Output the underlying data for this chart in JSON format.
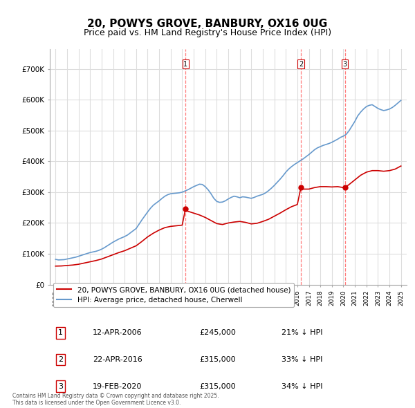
{
  "title": "20, POWYS GROVE, BANBURY, OX16 0UG",
  "subtitle": "Price paid vs. HM Land Registry's House Price Index (HPI)",
  "title_fontsize": 11,
  "subtitle_fontsize": 9,
  "background_color": "#ffffff",
  "plot_bg_color": "#ffffff",
  "grid_color": "#dddddd",
  "transactions": [
    {
      "num": 1,
      "date_label": "12-APR-2006",
      "date_x": 2006.28,
      "price": 245000,
      "hpi_pct": "21% ↓ HPI"
    },
    {
      "num": 2,
      "date_label": "22-APR-2016",
      "date_x": 2016.31,
      "price": 315000,
      "hpi_pct": "33% ↓ HPI"
    },
    {
      "num": 3,
      "date_label": "19-FEB-2020",
      "date_x": 2020.13,
      "price": 315000,
      "hpi_pct": "34% ↓ HPI"
    }
  ],
  "vline_color": "#ff4444",
  "vline_style": "--",
  "vline_alpha": 0.7,
  "red_line_color": "#cc0000",
  "blue_line_color": "#6699cc",
  "ylim_min": 0,
  "ylim_max": 750000,
  "yticks": [
    0,
    100000,
    200000,
    300000,
    400000,
    500000,
    600000,
    700000
  ],
  "ytick_labels": [
    "£0",
    "£100K",
    "£200K",
    "£300K",
    "£400K",
    "£500K",
    "£600K",
    "£700K"
  ],
  "xlim_min": 1994.5,
  "xlim_max": 2025.5,
  "legend_entries": [
    "20, POWYS GROVE, BANBURY, OX16 0UG (detached house)",
    "HPI: Average price, detached house, Cherwell"
  ],
  "footer_text": "Contains HM Land Registry data © Crown copyright and database right 2025.\nThis data is licensed under the Open Government Licence v3.0.",
  "hpi_data_x": [
    1995.0,
    1995.25,
    1995.5,
    1995.75,
    1996.0,
    1996.25,
    1996.5,
    1996.75,
    1997.0,
    1997.25,
    1997.5,
    1997.75,
    1998.0,
    1998.25,
    1998.5,
    1998.75,
    1999.0,
    1999.25,
    1999.5,
    1999.75,
    2000.0,
    2000.25,
    2000.5,
    2000.75,
    2001.0,
    2001.25,
    2001.5,
    2001.75,
    2002.0,
    2002.25,
    2002.5,
    2002.75,
    2003.0,
    2003.25,
    2003.5,
    2003.75,
    2004.0,
    2004.25,
    2004.5,
    2004.75,
    2005.0,
    2005.25,
    2005.5,
    2005.75,
    2006.0,
    2006.25,
    2006.5,
    2006.75,
    2007.0,
    2007.25,
    2007.5,
    2007.75,
    2008.0,
    2008.25,
    2008.5,
    2008.75,
    2009.0,
    2009.25,
    2009.5,
    2009.75,
    2010.0,
    2010.25,
    2010.5,
    2010.75,
    2011.0,
    2011.25,
    2011.5,
    2011.75,
    2012.0,
    2012.25,
    2012.5,
    2012.75,
    2013.0,
    2013.25,
    2013.5,
    2013.75,
    2014.0,
    2014.25,
    2014.5,
    2014.75,
    2015.0,
    2015.25,
    2015.5,
    2015.75,
    2016.0,
    2016.25,
    2016.5,
    2016.75,
    2017.0,
    2017.25,
    2017.5,
    2017.75,
    2018.0,
    2018.25,
    2018.5,
    2018.75,
    2019.0,
    2019.25,
    2019.5,
    2019.75,
    2020.0,
    2020.25,
    2020.5,
    2020.75,
    2021.0,
    2021.25,
    2021.5,
    2021.75,
    2022.0,
    2022.25,
    2022.5,
    2022.75,
    2023.0,
    2023.25,
    2023.5,
    2023.75,
    2024.0,
    2024.25,
    2024.5,
    2024.75,
    2025.0
  ],
  "hpi_data_y": [
    82000,
    80000,
    80500,
    81000,
    83000,
    85000,
    87000,
    89000,
    92000,
    95000,
    98000,
    101000,
    104000,
    106000,
    108000,
    111000,
    115000,
    120000,
    126000,
    132000,
    138000,
    143000,
    148000,
    152000,
    156000,
    161000,
    168000,
    175000,
    182000,
    196000,
    210000,
    223000,
    236000,
    248000,
    258000,
    265000,
    272000,
    280000,
    287000,
    292000,
    295000,
    296000,
    297000,
    298000,
    300000,
    304000,
    308000,
    313000,
    318000,
    322000,
    326000,
    325000,
    318000,
    308000,
    295000,
    280000,
    270000,
    267000,
    268000,
    272000,
    278000,
    283000,
    287000,
    285000,
    282000,
    285000,
    284000,
    282000,
    280000,
    283000,
    287000,
    290000,
    293000,
    298000,
    305000,
    313000,
    322000,
    332000,
    342000,
    353000,
    365000,
    375000,
    383000,
    390000,
    396000,
    402000,
    408000,
    415000,
    422000,
    430000,
    438000,
    444000,
    448000,
    452000,
    455000,
    458000,
    462000,
    467000,
    472000,
    478000,
    482000,
    488000,
    500000,
    515000,
    530000,
    548000,
    560000,
    570000,
    578000,
    582000,
    584000,
    578000,
    572000,
    568000,
    565000,
    567000,
    570000,
    575000,
    582000,
    590000,
    598000
  ],
  "red_data_x": [
    1995.0,
    1995.5,
    1996.0,
    1996.5,
    1997.0,
    1997.5,
    1998.0,
    1998.5,
    1999.0,
    1999.5,
    2000.0,
    2000.5,
    2001.0,
    2001.5,
    2002.0,
    2002.5,
    2003.0,
    2003.5,
    2004.0,
    2004.5,
    2005.0,
    2005.5,
    2006.0,
    2006.28,
    2006.5,
    2007.0,
    2007.5,
    2008.0,
    2008.5,
    2009.0,
    2009.5,
    2010.0,
    2010.5,
    2011.0,
    2011.5,
    2012.0,
    2012.5,
    2013.0,
    2013.5,
    2014.0,
    2014.5,
    2015.0,
    2015.5,
    2016.0,
    2016.31,
    2016.5,
    2017.0,
    2017.5,
    2018.0,
    2018.5,
    2019.0,
    2019.5,
    2020.0,
    2020.13,
    2020.5,
    2021.0,
    2021.5,
    2022.0,
    2022.5,
    2023.0,
    2023.5,
    2024.0,
    2024.5,
    2025.0
  ],
  "red_data_y": [
    60000,
    60500,
    62000,
    63500,
    66000,
    70000,
    74000,
    78000,
    83000,
    90000,
    97000,
    104000,
    110000,
    118000,
    126000,
    140000,
    155000,
    167000,
    177000,
    185000,
    189000,
    191000,
    193000,
    245000,
    238000,
    232000,
    226000,
    218000,
    208000,
    198000,
    195000,
    200000,
    203000,
    205000,
    202000,
    197000,
    199000,
    205000,
    212000,
    222000,
    232000,
    243000,
    253000,
    260000,
    315000,
    310000,
    310000,
    315000,
    318000,
    318000,
    317000,
    318000,
    315000,
    315000,
    325000,
    340000,
    355000,
    365000,
    370000,
    370000,
    368000,
    370000,
    375000,
    385000
  ]
}
